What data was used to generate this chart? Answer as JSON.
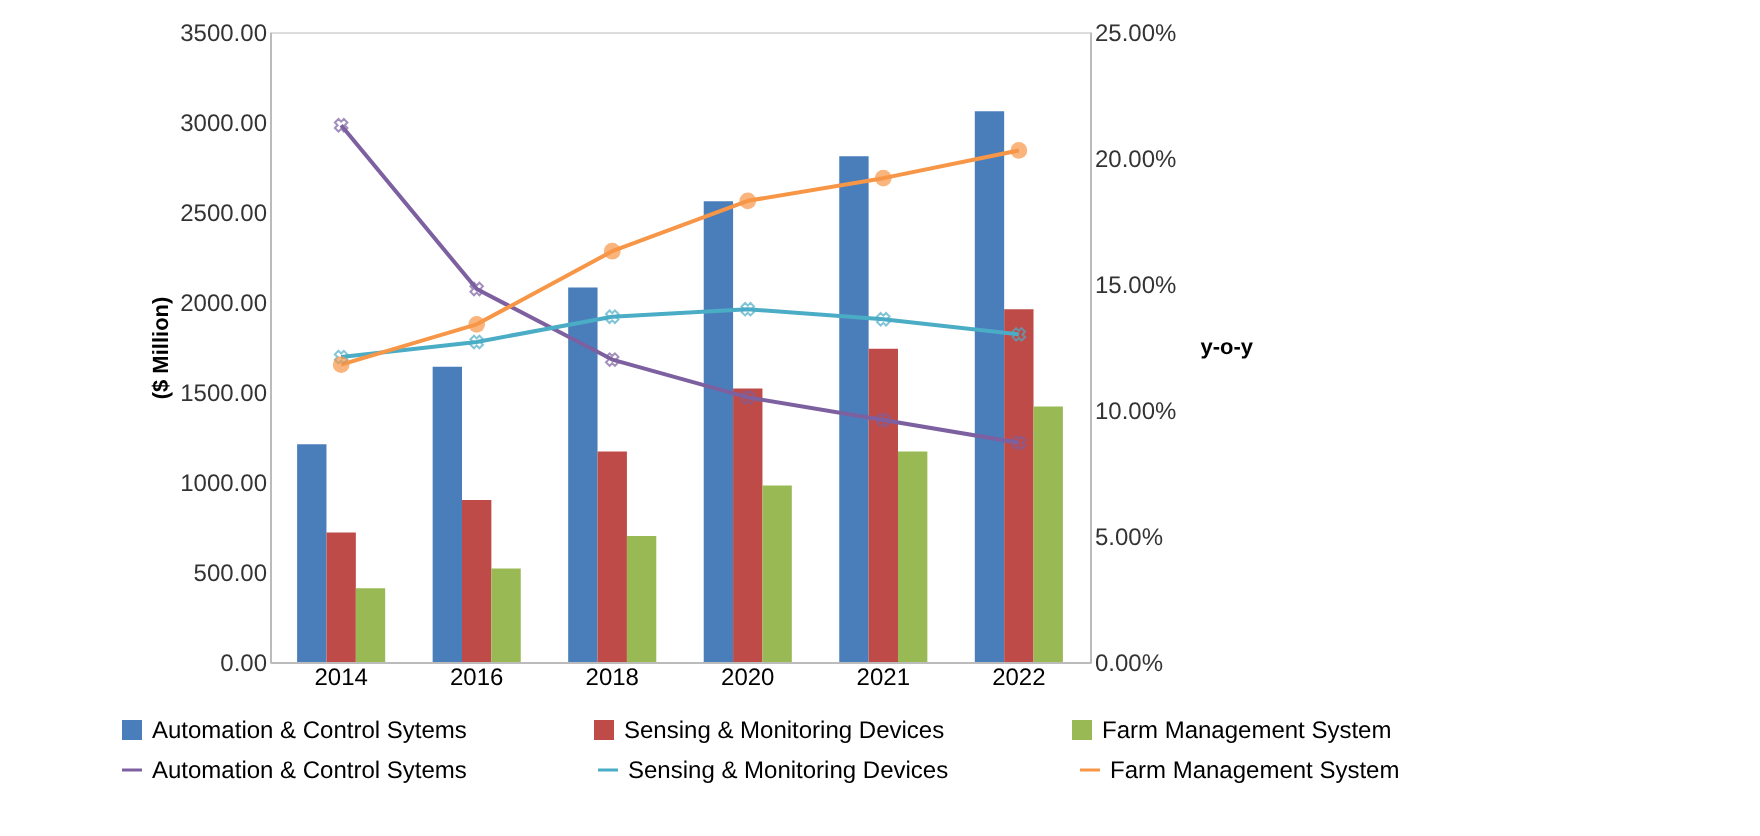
{
  "chart_data": {
    "type": "bar",
    "categories": [
      "2014",
      "2016",
      "2018",
      "2020",
      "2021",
      "2022"
    ],
    "ylabel": "($ Million)",
    "y2label": "y-o-y",
    "ylim": [
      0,
      3500
    ],
    "yticks": [
      {
        "value": 0,
        "label": "0.00"
      },
      {
        "value": 500,
        "label": "500.00"
      },
      {
        "value": 1000,
        "label": "1000.00"
      },
      {
        "value": 1500,
        "label": "1500.00"
      },
      {
        "value": 2000,
        "label": "2000.00"
      },
      {
        "value": 2500,
        "label": "2500.00"
      },
      {
        "value": 3000,
        "label": "3000.00"
      },
      {
        "value": 3500,
        "label": "3500.00"
      }
    ],
    "y2lim": [
      0,
      25
    ],
    "y2ticks": [
      {
        "value": 0,
        "label": "0.00%"
      },
      {
        "value": 5,
        "label": "5.00%"
      },
      {
        "value": 10,
        "label": "10.00%"
      },
      {
        "value": 15,
        "label": "15.00%"
      },
      {
        "value": 20,
        "label": "20.00%"
      },
      {
        "value": 25,
        "label": "25.00%"
      }
    ],
    "grid": false,
    "legend": "bottom",
    "series": [
      {
        "name": "Automation & Control Sytems",
        "color": "#4a7ebb",
        "values": [
          1210,
          1640,
          2080,
          2560,
          2810,
          3060
        ]
      },
      {
        "name": "Sensing & Monitoring Devices",
        "color": "#be4b48",
        "values": [
          720,
          900,
          1170,
          1520,
          1740,
          1960
        ]
      },
      {
        "name": "Farm Management System",
        "color": "#98b954",
        "values": [
          410,
          520,
          700,
          980,
          1170,
          1420
        ]
      },
      {
        "name": "Automation & Control Sytems",
        "type": "line",
        "axis": "y2",
        "marker": "cross",
        "color": "#7d60a0",
        "values": [
          21.3,
          14.8,
          12.0,
          10.5,
          9.6,
          8.7
        ]
      },
      {
        "name": "Sensing & Monitoring Devices",
        "type": "line",
        "axis": "y2",
        "marker": "cross",
        "color": "#4bacc6",
        "values": [
          12.1,
          12.7,
          13.7,
          14.0,
          13.6,
          13.0
        ]
      },
      {
        "name": "Farm Management System",
        "type": "line",
        "axis": "y2",
        "marker": "circle",
        "color": "#f79646",
        "values": [
          11.8,
          13.4,
          16.3,
          18.3,
          19.2,
          20.3
        ]
      }
    ]
  }
}
